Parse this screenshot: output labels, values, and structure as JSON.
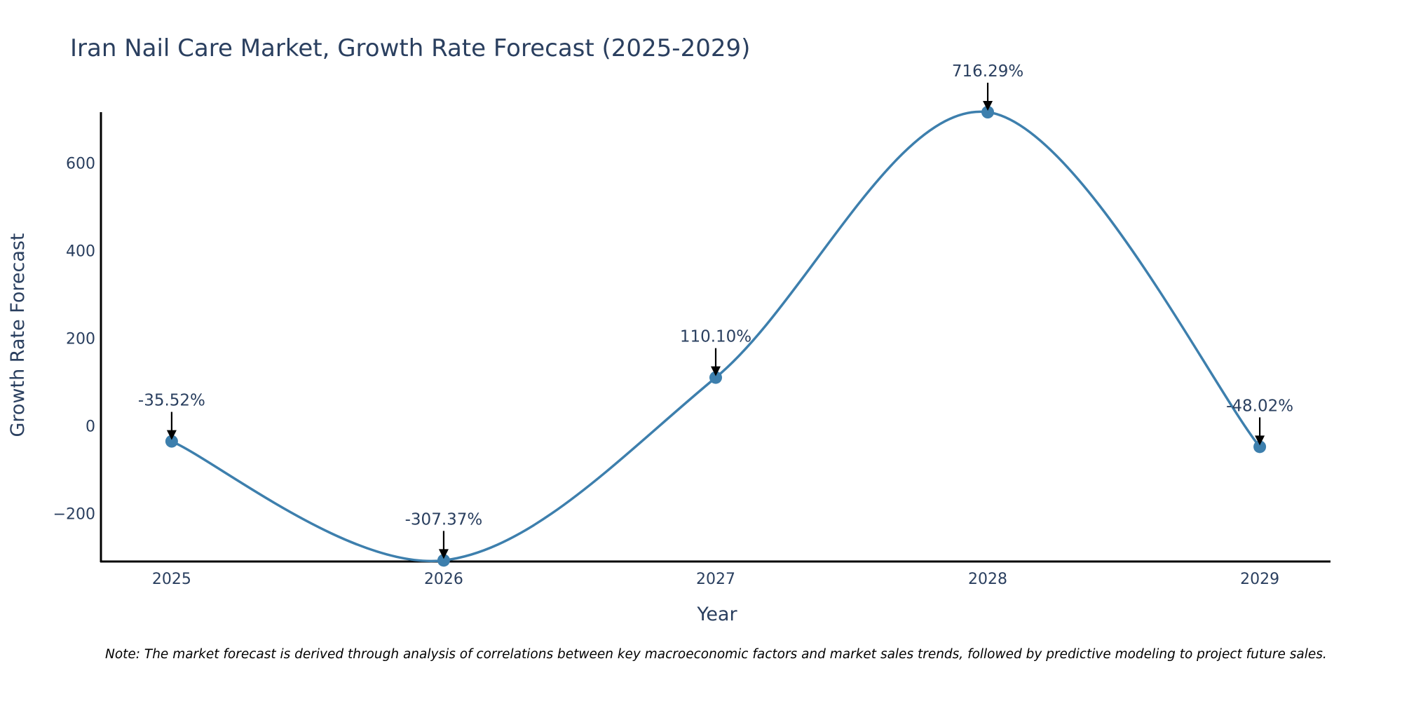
{
  "chart_data": {
    "type": "line",
    "title": "Iran Nail Care Market, Growth Rate Forecast (2025-2029)",
    "xlabel": "Year",
    "ylabel": "Growth Rate Forecast",
    "categories": [
      "2025",
      "2026",
      "2027",
      "2028",
      "2029"
    ],
    "series": [
      {
        "name": "Growth Rate Forecast",
        "values": [
          -35.52,
          -307.37,
          110.1,
          716.29,
          -48.02
        ],
        "labels": [
          "-35.52%",
          "-307.37%",
          "110.10%",
          "716.29%",
          "-48.02%"
        ]
      }
    ],
    "xlim": [
      2024.74,
      2029.26
    ],
    "ylim": [
      -310,
      716.29
    ],
    "yticks": [
      -200,
      0,
      200,
      400,
      600
    ],
    "ytick_labels": [
      "−200",
      "0",
      "200",
      "400",
      "600"
    ],
    "grid": false,
    "line_shape": "spline",
    "line_color": "#3d7fad",
    "marker_color": "#3d7fad",
    "font_color": "#2a3f5f",
    "note": "Note: The market forecast is derived through analysis of correlations between key macroeconomic factors and market sales trends, followed by predictive modeling to project future sales."
  }
}
